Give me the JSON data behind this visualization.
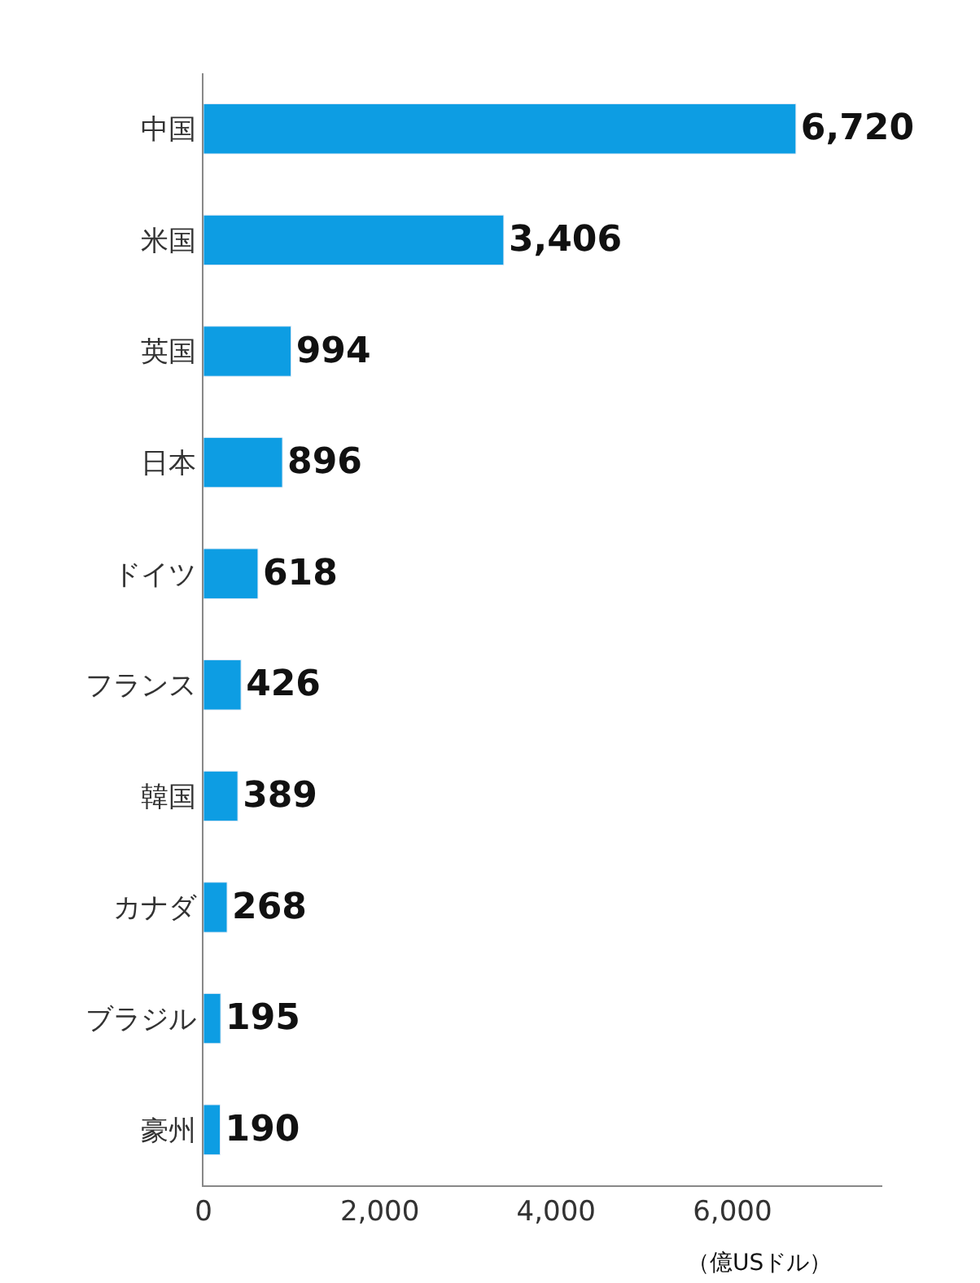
{
  "chart_data": {
    "type": "bar",
    "orientation": "horizontal",
    "categories": [
      "中国",
      "米国",
      "英国",
      "日本",
      "ドイツ",
      "フランス",
      "韓国",
      "カナダ",
      "ブラジル",
      "豪州"
    ],
    "values": [
      6720,
      3406,
      994,
      896,
      618,
      426,
      389,
      268,
      195,
      190
    ],
    "value_labels": [
      "6,720",
      "3,406",
      "994",
      "896",
      "618",
      "426",
      "389",
      "268",
      "195",
      "190"
    ],
    "color": "#0d9de3",
    "xlabel": "（億USドル）",
    "xlim": [
      0,
      7700
    ],
    "xticks": [
      0,
      {
        "value": 2000,
        "label": "2,000"
      },
      {
        "value": 4000,
        "label": "4,000"
      },
      {
        "value": 6000,
        "label": "6,000"
      }
    ],
    "legend": false
  }
}
